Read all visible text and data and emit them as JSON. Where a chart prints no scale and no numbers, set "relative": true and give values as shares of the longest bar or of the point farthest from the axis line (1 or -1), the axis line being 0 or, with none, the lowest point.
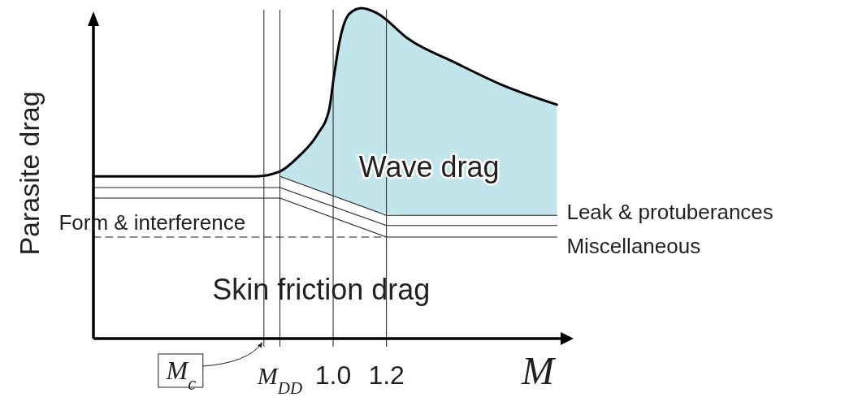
{
  "chart_data": {
    "type": "line",
    "relative": true,
    "ylabel": "Parasite drag",
    "xlabel": "M",
    "xlim": [
      0.1,
      1.86
    ],
    "xticks": [
      {
        "value": 0.74,
        "label": null
      },
      {
        "value": 0.8,
        "label": "M$_{DD}$"
      },
      {
        "value": 1.0,
        "label": "1.0"
      },
      {
        "value": 1.2,
        "label": "1.2"
      }
    ],
    "series": [
      {
        "type": "area",
        "color": "#c1e5eb",
        "x": [
          0.8,
          0.873,
          0.942,
          0.985,
          1.002,
          1.024,
          1.061,
          1.106,
          1.164,
          1.282,
          1.458,
          1.63,
          1.84
        ],
        "values": [
          0.506,
          0.553,
          0.619,
          0.693,
          0.789,
          0.899,
          0.983,
          1.0,
          0.985,
          0.907,
          0.835,
          0.769,
          0.708
        ]
      },
      {
        "color": "#000000",
        "x": [
          0.1,
          0.71,
          0.8,
          0.873,
          0.942,
          0.985,
          1.002,
          1.024,
          1.061,
          1.106,
          1.164,
          1.282,
          1.458,
          1.63,
          1.84
        ],
        "values": [
          0.491,
          0.491,
          0.506,
          0.553,
          0.619,
          0.693,
          0.789,
          0.899,
          0.983,
          1.0,
          0.985,
          0.907,
          0.835,
          0.769,
          0.708
        ]
      },
      {
        "color": "#231f20",
        "x": [
          0.8,
          1.2,
          1.84
        ],
        "values": [
          0.491,
          0.373,
          0.373
        ]
      },
      {
        "color": "#231f20",
        "x": [
          0.1,
          0.8,
          1.2,
          1.84
        ],
        "values": [
          0.457,
          0.457,
          0.342,
          0.342
        ]
      },
      {
        "color": "#231f20",
        "x": [
          0.1,
          0.8,
          1.2,
          1.84
        ],
        "values": [
          0.425,
          0.425,
          0.307,
          0.307
        ]
      },
      {
        "color": "#231f20",
        "x": [
          0.1,
          1.2
        ],
        "values": [
          0.307,
          0.307
        ],
        "line_style": "dashed"
      }
    ],
    "ref_lines": [
      {
        "axis": "x",
        "value": 0.1,
        "color": "#000000"
      },
      {
        "axis": "x",
        "value": 0.74,
        "color": "#231f20"
      },
      {
        "axis": "x",
        "value": 0.8,
        "color": "#231f20"
      },
      {
        "axis": "x",
        "value": 1.0,
        "color": "#231f20"
      },
      {
        "axis": "x",
        "value": 1.2,
        "color": "#231f20"
      }
    ],
    "annotations": [
      "Wave drag",
      "Form & interference",
      "Leak & protuberances",
      "Miscellaneous",
      "Skin friction drag",
      "M$_{c}$"
    ]
  }
}
